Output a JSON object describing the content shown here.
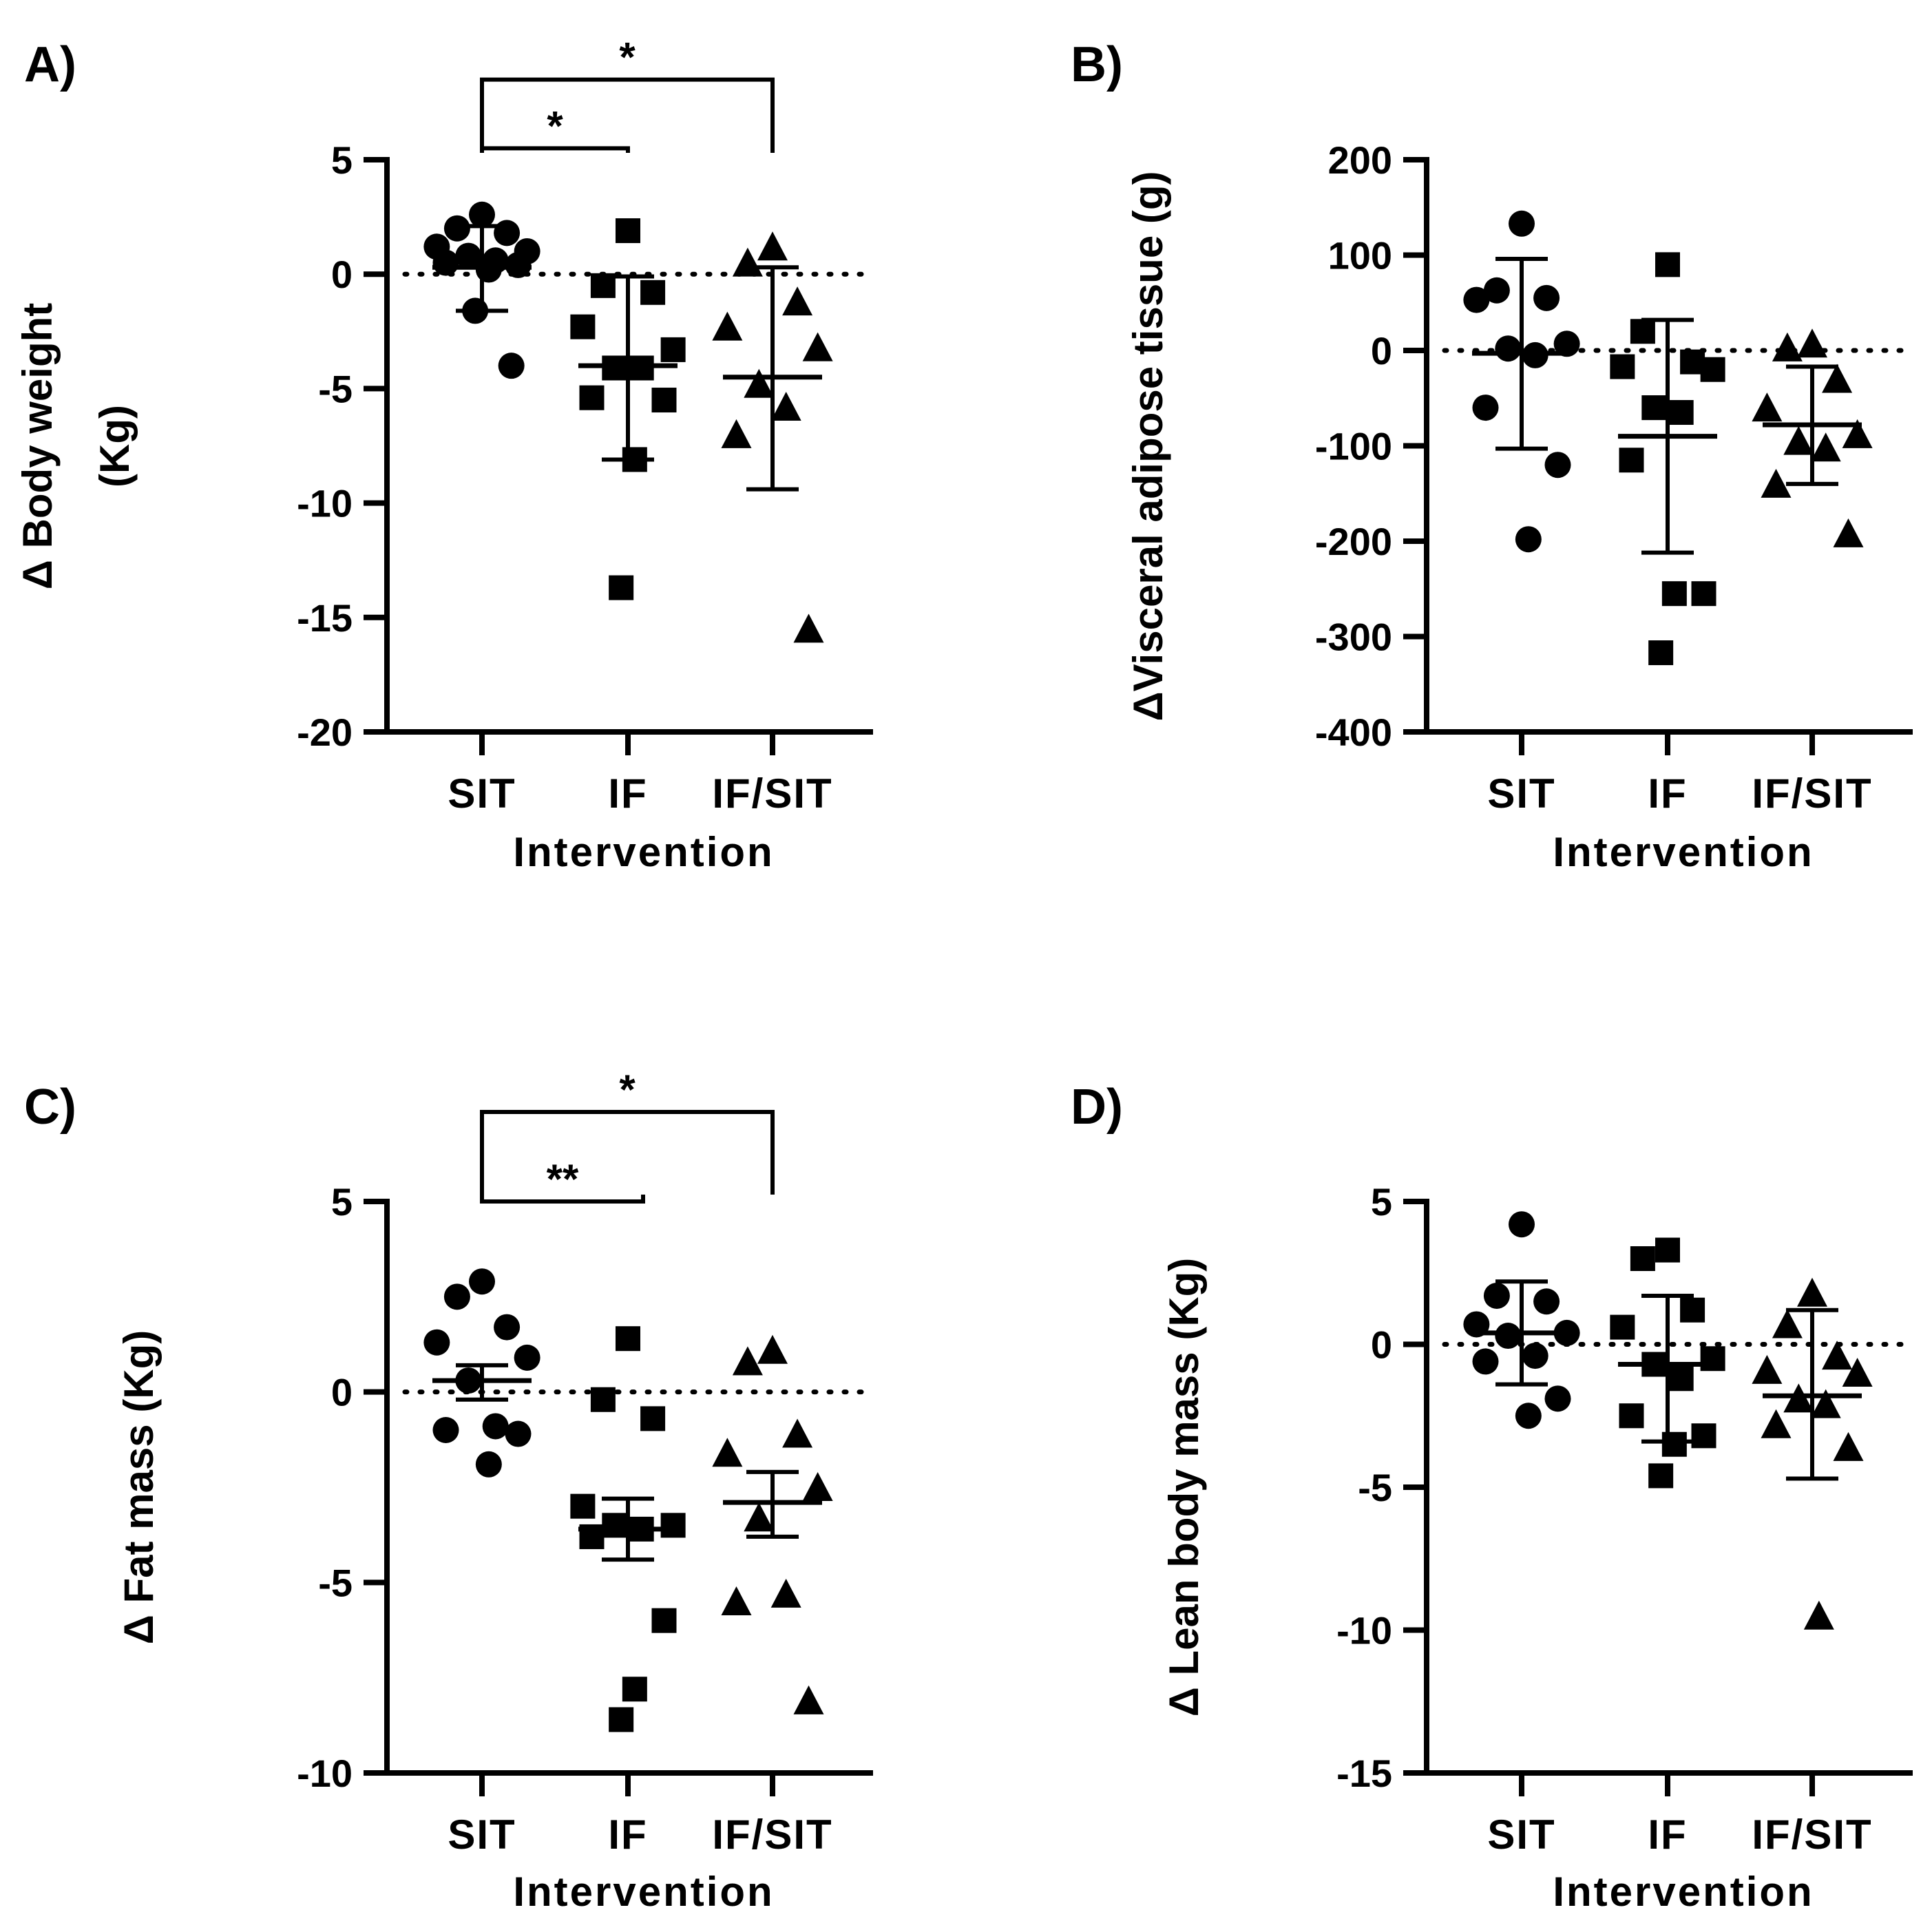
{
  "figure": {
    "categories": [
      "SIT",
      "IF",
      "IF/SIT"
    ],
    "markers": [
      "circle",
      "square",
      "triangle"
    ]
  },
  "chart_data": [
    {
      "type": "scatter",
      "panel_label": "A)",
      "ylabel_lines": [
        "Δ Body weight",
        "(Kg)"
      ],
      "xlabel": "Intervention",
      "categories": [
        "SIT",
        "IF",
        "IF/SIT"
      ],
      "ylim": [
        -20,
        5
      ],
      "yticks": [
        5,
        0,
        -5,
        -10,
        -15,
        -20
      ],
      "ytick_labels": [
        "5",
        "0",
        "-5",
        "-10",
        "-15",
        "-20"
      ],
      "reference_line": 0,
      "series": [
        {
          "name": "SIT",
          "marker": "circle",
          "values": [
            2.6,
            2.0,
            1.8,
            1.2,
            1.0,
            0.8,
            0.6,
            0.5,
            0.4,
            0.2,
            -1.6,
            -4.0
          ],
          "mean": 0.3,
          "err_low": -1.6,
          "err_high": 2.1
        },
        {
          "name": "IF",
          "marker": "square",
          "values": [
            1.9,
            -0.5,
            -0.8,
            -2.3,
            -3.3,
            -4.1,
            -4.1,
            -5.4,
            -5.5,
            -8.1,
            -13.7
          ],
          "mean": -4.0,
          "err_low": -8.1,
          "err_high": -0.1
        },
        {
          "name": "IF/SIT",
          "marker": "triangle",
          "values": [
            1.2,
            0.5,
            -1.2,
            -2.3,
            -3.2,
            -4.8,
            -5.8,
            -7.0,
            -15.5
          ],
          "mean": -4.5,
          "err_low": -9.4,
          "err_high": 0.3
        }
      ],
      "significance": [
        {
          "label": "*",
          "from": "SIT",
          "to": "IF",
          "level": 5.5
        },
        {
          "label": "*",
          "from": "SIT",
          "to": "IF/SIT",
          "level": 8.5
        }
      ]
    },
    {
      "type": "scatter",
      "panel_label": "B)",
      "ylabel_lines": [
        "ΔVisceral adipose tissue (g)"
      ],
      "xlabel": "Intervention",
      "categories": [
        "SIT",
        "IF",
        "IF/SIT"
      ],
      "ylim": [
        -400,
        200
      ],
      "yticks": [
        200,
        100,
        0,
        -100,
        -200,
        -300,
        -400
      ],
      "ytick_labels": [
        "200",
        "100",
        "0",
        "-100",
        "-200",
        "-300",
        "-400"
      ],
      "reference_line": 0,
      "series": [
        {
          "name": "SIT",
          "marker": "circle",
          "values": [
            133,
            63,
            55,
            53,
            7,
            2,
            -5,
            -60,
            -120,
            -198
          ],
          "mean": -3,
          "err_low": -103,
          "err_high": 96
        },
        {
          "name": "IF",
          "marker": "square",
          "values": [
            90,
            20,
            -12,
            -17,
            -20,
            -60,
            -65,
            -115,
            -255,
            -255,
            -317
          ],
          "mean": -90,
          "err_low": -212,
          "err_high": 32
        },
        {
          "name": "IF/SIT",
          "marker": "triangle",
          "values": [
            7,
            3,
            -30,
            -60,
            -88,
            -95,
            -102,
            -140,
            -192
          ],
          "mean": -78,
          "err_low": -140,
          "err_high": -17
        }
      ],
      "significance": []
    },
    {
      "type": "scatter",
      "panel_label": "C)",
      "ylabel_lines": [
        "Δ Fat mass (Kg)"
      ],
      "xlabel": "Intervention",
      "categories": [
        "SIT",
        "IF",
        "IF/SIT"
      ],
      "ylim": [
        -10,
        5
      ],
      "yticks": [
        5,
        0,
        -5,
        -10
      ],
      "ytick_labels": [
        "5",
        "0",
        "-5",
        "-10"
      ],
      "reference_line": 0,
      "series": [
        {
          "name": "SIT",
          "marker": "circle",
          "values": [
            2.9,
            2.5,
            1.7,
            1.3,
            0.9,
            0.3,
            -0.9,
            -1.0,
            -1.1,
            -1.9
          ],
          "mean": 0.3,
          "err_low": -0.2,
          "err_high": 0.7
        },
        {
          "name": "IF",
          "marker": "square",
          "values": [
            1.4,
            -0.2,
            -0.7,
            -3.0,
            -3.5,
            -3.5,
            -3.6,
            -3.8,
            -6.0,
            -7.8,
            -8.6
          ],
          "mean": -3.6,
          "err_low": -4.4,
          "err_high": -2.8
        },
        {
          "name": "IF/SIT",
          "marker": "triangle",
          "values": [
            1.1,
            0.8,
            -1.1,
            -1.6,
            -2.5,
            -3.3,
            -5.3,
            -5.5,
            -8.1
          ],
          "mean": -2.9,
          "err_low": -3.8,
          "err_high": -2.1
        }
      ],
      "significance": [
        {
          "label": "**",
          "from": "SIT",
          "to": "IF",
          "level": 5.0
        },
        {
          "label": "*",
          "from": "SIT",
          "to": "IF/SIT",
          "level": 7.35
        }
      ]
    },
    {
      "type": "scatter",
      "panel_label": "D)",
      "ylabel_lines": [
        "Δ Lean body mass (Kg)"
      ],
      "xlabel": "Intervention",
      "categories": [
        "SIT",
        "IF",
        "IF/SIT"
      ],
      "ylim": [
        -15,
        5
      ],
      "yticks": [
        5,
        0,
        -5,
        -10,
        -15
      ],
      "ytick_labels": [
        "5",
        "0",
        "-5",
        "-10",
        "-15"
      ],
      "reference_line": 0,
      "series": [
        {
          "name": "SIT",
          "marker": "circle",
          "values": [
            4.2,
            1.7,
            1.5,
            0.7,
            0.4,
            0.3,
            -0.4,
            -0.6,
            -1.9,
            -2.5
          ],
          "mean": 0.4,
          "err_low": -1.4,
          "err_high": 2.2
        },
        {
          "name": "IF",
          "marker": "square",
          "values": [
            3.3,
            3.0,
            1.2,
            0.6,
            -0.5,
            -0.7,
            -1.2,
            -2.5,
            -3.2,
            -3.5,
            -4.6
          ],
          "mean": -0.7,
          "err_low": -3.4,
          "err_high": 1.7
        },
        {
          "name": "IF/SIT",
          "marker": "triangle",
          "values": [
            1.8,
            0.7,
            -0.4,
            -0.9,
            -1.0,
            -1.9,
            -2.1,
            -2.8,
            -3.6,
            -9.5
          ],
          "mean": -1.8,
          "err_low": -4.7,
          "err_high": 1.2
        }
      ],
      "significance": []
    }
  ]
}
